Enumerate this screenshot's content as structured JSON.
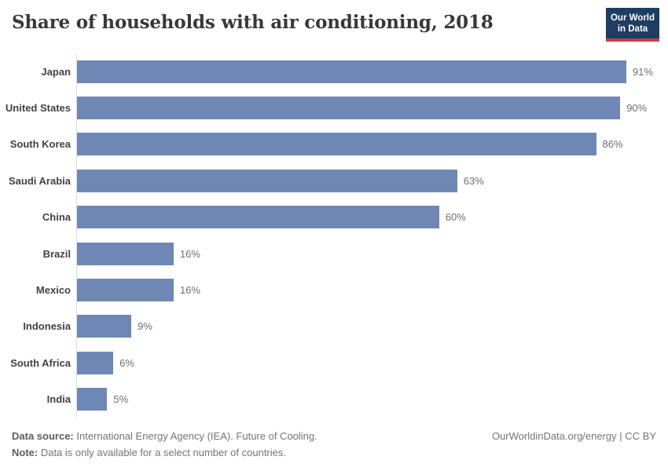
{
  "header": {
    "title": "Share of households with air conditioning, 2018",
    "logo": {
      "line1": "Our World",
      "line2": "in Data"
    }
  },
  "chart_data": {
    "type": "bar",
    "orientation": "horizontal",
    "title": "Share of households with air conditioning, 2018",
    "xlabel": "",
    "ylabel": "",
    "xlim": [
      0,
      100
    ],
    "grid": false,
    "legend": "none",
    "categories": [
      "Japan",
      "United States",
      "South Korea",
      "Saudi Arabia",
      "China",
      "Brazil",
      "Mexico",
      "Indonesia",
      "South Africa",
      "India"
    ],
    "values": [
      91,
      90,
      86,
      63,
      60,
      16,
      16,
      9,
      6,
      5
    ],
    "value_labels": [
      "91%",
      "90%",
      "86%",
      "63%",
      "60%",
      "16%",
      "16%",
      "9%",
      "6%",
      "5%"
    ],
    "unit": "%"
  },
  "footer": {
    "source_label": "Data source:",
    "source_text": " International Energy Agency (IEA). Future of Cooling.",
    "note_label": "Note:",
    "note_text": " Data is only available for a select number of countries.",
    "attribution": "OurWorldinData.org/energy | CC BY"
  },
  "colors": {
    "bar": "#6e87b4",
    "logo_background": "#1d3d63",
    "logo_red": "#cc3b46",
    "axis_line": "#dcdcdc",
    "title_text": "#383838",
    "entity_label_text": "#424242",
    "value_label_text": "#6e6e6e",
    "footer_text": "#757575"
  }
}
